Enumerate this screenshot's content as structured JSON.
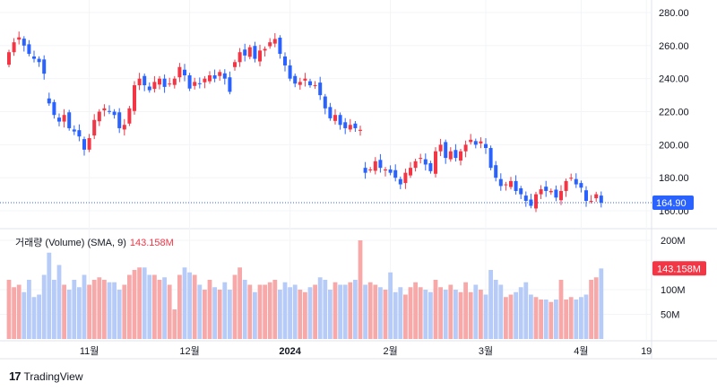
{
  "chart_data": {
    "type": "candlestick",
    "price_axis": {
      "ticks": [
        "280.00",
        "260.00",
        "240.00",
        "220.00",
        "200.00",
        "180.00",
        "160.00"
      ],
      "tick_values": [
        280,
        260,
        240,
        220,
        200,
        180,
        160
      ],
      "range": [
        160,
        280
      ]
    },
    "volume_axis": {
      "ticks": [
        "200M",
        "100M",
        "50M"
      ],
      "tick_values": [
        200,
        100,
        50
      ]
    },
    "time_labels": [
      {
        "label": "11월",
        "index": 16
      },
      {
        "label": "12월",
        "index": 36
      },
      {
        "label": "2024",
        "index": 56
      },
      {
        "label": "2월",
        "index": 76
      },
      {
        "label": "3월",
        "index": 95
      },
      {
        "label": "4월",
        "index": 114
      },
      {
        "label": "19",
        "index": 127
      }
    ],
    "last_price": "164.90",
    "last_price_value": 164.9,
    "volume_legend": {
      "title": "거래량 (Volume) (SMA, 9)",
      "value": "143.158M"
    },
    "closes": [
      256,
      262,
      265,
      260,
      255,
      252,
      250,
      243,
      225,
      218,
      214,
      218,
      210,
      208,
      205,
      197,
      204,
      215,
      220,
      222,
      220,
      218,
      210,
      212,
      222,
      236,
      240,
      236,
      233,
      238,
      240,
      235,
      237,
      240,
      247,
      242,
      234,
      238,
      237,
      240,
      242,
      240,
      244,
      240,
      232,
      250,
      256,
      254,
      259,
      252,
      257,
      258,
      262,
      264,
      255,
      248,
      240,
      237,
      238,
      240,
      236,
      236,
      230,
      222,
      216,
      218,
      212,
      210,
      212,
      210,
      209,
      183,
      185,
      190,
      186,
      185,
      183,
      180,
      176,
      183,
      186,
      190,
      192,
      188,
      184,
      196,
      200,
      192,
      196,
      192,
      196,
      200,
      203,
      200,
      202,
      198,
      186,
      180,
      175,
      176,
      178,
      172,
      170,
      166,
      163,
      170,
      173,
      172,
      172,
      168,
      172,
      178,
      180,
      176,
      174,
      166,
      166,
      170,
      164.9
    ],
    "volumes_m": [
      120,
      105,
      110,
      95,
      120,
      85,
      90,
      130,
      175,
      120,
      150,
      110,
      100,
      120,
      105,
      130,
      110,
      120,
      125,
      120,
      115,
      115,
      100,
      110,
      130,
      140,
      145,
      145,
      130,
      130,
      120,
      125,
      110,
      60,
      130,
      145,
      135,
      130,
      110,
      100,
      120,
      105,
      100,
      115,
      100,
      130,
      145,
      120,
      110,
      95,
      110,
      110,
      115,
      120,
      100,
      115,
      105,
      110,
      100,
      95,
      105,
      110,
      125,
      120,
      100,
      115,
      110,
      110,
      115,
      120,
      200,
      110,
      115,
      110,
      105,
      100,
      135,
      95,
      105,
      90,
      105,
      115,
      105,
      100,
      95,
      120,
      105,
      100,
      110,
      100,
      95,
      115,
      95,
      110,
      100,
      90,
      140,
      120,
      110,
      85,
      90,
      95,
      105,
      115,
      90,
      85,
      80,
      80,
      75,
      80,
      120,
      80,
      85,
      80,
      85,
      90,
      120,
      125,
      143
    ]
  },
  "colors": {
    "up": "#f23645",
    "down": "#2962ff",
    "up_vol": "#f7a9a9",
    "down_vol": "#b6cbf7",
    "last_price_bg": "#2962ff",
    "volume_badge_bg": "#f23645"
  },
  "branding": {
    "logo_text": "TradingView"
  }
}
